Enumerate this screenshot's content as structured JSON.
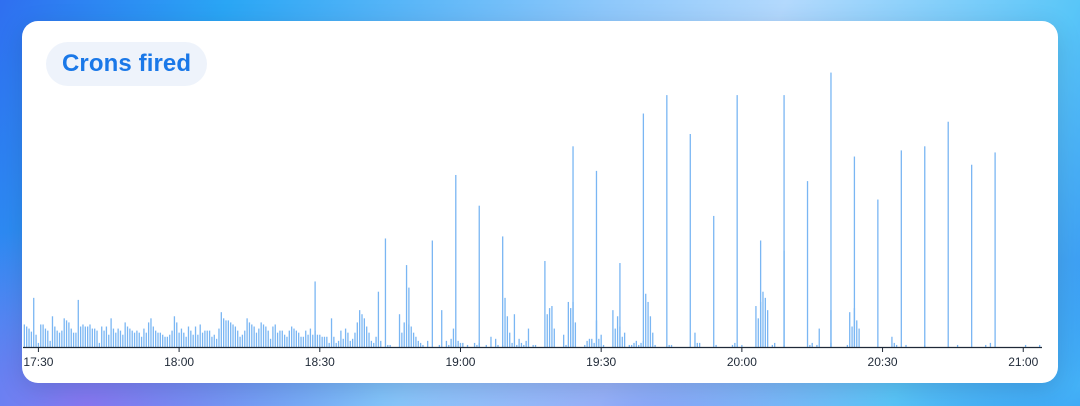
{
  "card": {
    "title": "Crons fired"
  },
  "colors": {
    "bar": "#7ab6f3",
    "axis": "#1f2937",
    "title": "#1a78e8",
    "pill": "#eef3fb"
  },
  "chart_data": {
    "type": "bar",
    "title": "Crons fired",
    "x_tick_labels": [
      "17:30",
      "18:00",
      "18:30",
      "19:00",
      "19:30",
      "20:00",
      "20:30",
      "21:00"
    ],
    "x_tick_minutes": [
      0,
      30,
      60,
      90,
      120,
      150,
      180,
      210
    ],
    "x_range_minutes": [
      -3.5,
      214
    ],
    "y_range": [
      0,
      250
    ],
    "bar_interval_minutes": 0.5,
    "values": [
      22,
      20,
      18,
      15,
      48,
      12,
      4,
      22,
      22,
      18,
      16,
      6,
      30,
      20,
      16,
      14,
      16,
      28,
      26,
      24,
      18,
      14,
      14,
      46,
      20,
      22,
      20,
      20,
      22,
      18,
      18,
      16,
      4,
      20,
      16,
      20,
      12,
      28,
      18,
      14,
      18,
      16,
      12,
      24,
      20,
      18,
      16,
      14,
      16,
      14,
      10,
      18,
      14,
      24,
      28,
      20,
      16,
      14,
      14,
      12,
      10,
      10,
      12,
      16,
      30,
      24,
      14,
      18,
      14,
      10,
      20,
      16,
      12,
      20,
      12,
      22,
      14,
      16,
      16,
      16,
      10,
      12,
      8,
      18,
      34,
      28,
      26,
      26,
      24,
      22,
      20,
      16,
      10,
      12,
      16,
      28,
      24,
      22,
      20,
      14,
      18,
      24,
      22,
      20,
      16,
      8,
      20,
      22,
      14,
      16,
      16,
      12,
      10,
      16,
      20,
      18,
      16,
      14,
      10,
      10,
      16,
      12,
      18,
      12,
      16,
      12,
      12,
      10,
      10,
      10,
      4,
      28,
      10,
      4,
      6,
      16,
      8,
      18,
      14,
      6,
      8,
      14,
      24,
      36,
      32,
      28,
      20,
      14,
      6,
      4,
      10,
      54,
      6,
      0,
      0,
      2,
      2,
      0,
      0,
      0,
      32,
      14,
      24,
      80,
      22,
      20,
      14,
      10,
      6,
      4,
      2,
      0,
      6,
      0,
      0,
      0,
      0,
      2,
      36,
      0,
      6,
      2,
      8,
      18,
      2,
      6,
      4,
      4,
      0,
      2,
      0,
      0,
      4,
      2,
      4,
      0,
      0,
      2,
      0,
      10,
      0,
      8,
      2,
      0,
      2,
      48,
      30,
      14,
      4,
      32,
      2,
      8,
      4,
      2,
      6,
      18,
      0,
      2,
      2,
      0,
      0,
      0,
      84,
      32,
      38,
      40,
      18,
      0,
      0,
      0,
      12,
      2,
      44,
      38,
      44,
      24,
      0,
      0,
      0,
      2,
      6,
      8,
      8,
      4,
      26,
      8,
      12,
      2,
      0,
      0,
      0,
      36,
      18,
      30,
      20,
      10,
      14,
      0,
      2,
      2,
      4,
      6,
      2,
      4,
      6,
      52,
      44,
      30,
      14,
      2,
      0,
      0,
      0,
      0,
      0,
      2,
      2,
      0,
      0,
      0,
      0,
      0,
      0,
      0,
      0,
      0,
      14,
      4,
      4,
      0,
      0,
      0,
      0,
      0,
      0,
      2,
      0,
      0,
      0,
      0,
      0,
      0,
      2,
      4,
      2,
      0,
      2,
      0,
      0,
      0,
      0,
      0,
      40,
      28,
      44,
      54,
      48,
      36,
      0,
      2,
      4,
      0,
      0,
      0,
      2,
      0,
      0,
      0,
      0,
      0,
      0,
      0,
      0,
      0,
      0,
      2,
      4,
      0,
      2,
      18,
      0,
      0,
      0,
      0,
      4,
      0,
      0,
      0,
      0,
      0,
      0,
      2,
      34,
      20,
      38,
      26,
      18,
      0,
      0,
      0,
      0,
      0,
      0,
      0,
      0,
      0,
      0,
      0,
      0,
      0,
      10,
      4,
      2,
      0,
      0,
      0,
      2,
      0,
      0,
      0,
      0,
      0,
      0,
      0,
      2,
      0,
      0,
      0,
      0,
      0,
      0,
      0,
      0,
      0,
      0,
      0,
      0,
      0,
      2,
      0,
      0,
      0,
      0,
      0,
      0,
      0,
      0,
      0,
      0,
      0,
      2,
      0,
      4,
      0,
      0,
      0,
      0,
      0,
      0,
      0,
      0,
      0,
      0,
      0,
      0,
      0,
      0,
      2,
      0,
      0,
      0,
      0,
      0,
      2,
      0,
      0,
      0,
      0,
      0,
      0,
      0,
      0,
      0,
      0,
      0,
      0,
      0,
      0,
      0,
      2,
      0,
      0,
      0,
      0,
      0,
      0,
      0,
      0,
      0,
      0,
      0,
      0,
      2,
      0,
      0,
      0,
      0,
      0,
      0,
      0,
      0,
      0,
      0,
      0,
      0,
      0,
      0,
      0,
      0,
      2,
      0,
      0,
      0,
      0,
      0,
      0,
      0,
      0,
      0,
      2,
      0,
      0,
      0,
      0,
      0,
      0,
      0,
      0,
      0,
      0,
      0,
      0,
      0,
      0,
      0,
      2,
      0,
      0,
      0,
      0,
      0,
      0,
      0,
      0,
      0,
      0,
      0,
      0,
      0,
      0,
      0,
      0,
      0,
      0,
      0,
      0,
      0,
      0,
      0,
      0,
      0,
      0,
      0,
      0,
      2,
      0,
      0,
      0,
      0,
      0,
      0,
      0,
      0,
      0,
      0,
      0,
      0,
      0,
      0,
      0,
      0,
      0,
      0,
      0,
      2,
      0,
      0
    ],
    "spikes": [
      {
        "x": 114,
        "y": 196
      },
      {
        "x": 119,
        "y": 172
      },
      {
        "x": 129,
        "y": 228
      },
      {
        "x": 134,
        "y": 246
      },
      {
        "x": 139,
        "y": 208
      },
      {
        "x": 144,
        "y": 128
      },
      {
        "x": 149,
        "y": 246
      },
      {
        "x": 159,
        "y": 246
      },
      {
        "x": 164,
        "y": 162
      },
      {
        "x": 169,
        "y": 268
      },
      {
        "x": 174,
        "y": 186
      },
      {
        "x": 179,
        "y": 144
      },
      {
        "x": 184,
        "y": 192
      },
      {
        "x": 189,
        "y": 196
      },
      {
        "x": 194,
        "y": 220
      },
      {
        "x": 199,
        "y": 178
      },
      {
        "x": 204,
        "y": 190
      }
    ],
    "mid_spikes": [
      {
        "x": 89,
        "y": 168
      },
      {
        "x": 94,
        "y": 138
      },
      {
        "x": 99,
        "y": 108
      },
      {
        "x": 74,
        "y": 106
      },
      {
        "x": 84,
        "y": 104
      },
      {
        "x": 59,
        "y": 64
      },
      {
        "x": 79,
        "y": 58
      },
      {
        "x": 124,
        "y": 82
      },
      {
        "x": 154,
        "y": 104
      },
      {
        "x": 169,
        "y": 36
      },
      {
        "x": 159,
        "y": 94
      }
    ]
  }
}
